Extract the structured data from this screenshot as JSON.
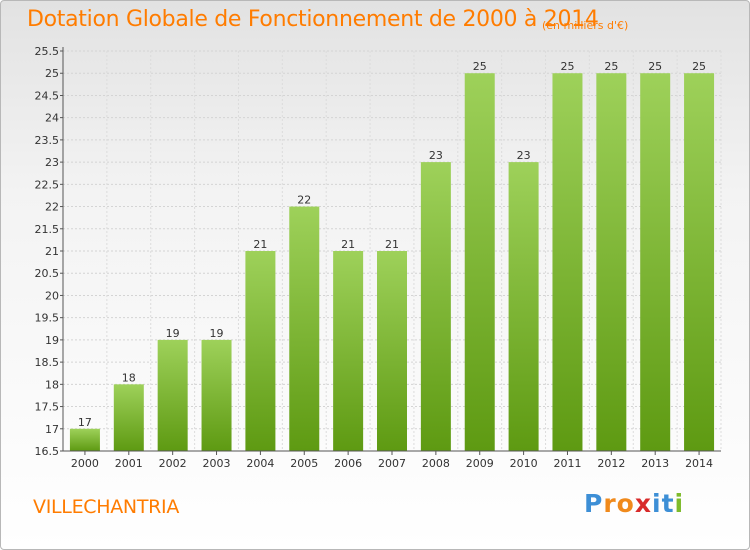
{
  "title": "Dotation Globale de Fonctionnement de 2000 à 2014",
  "subtitle": "(en milliers d'€)",
  "commune": "VILLECHANTRIA",
  "logo": {
    "letters": [
      "P",
      "r",
      "o",
      "x",
      "i",
      "t",
      "i"
    ],
    "colors": [
      "#3d8fd6",
      "#f08a1c",
      "#f08a1c",
      "#d82a2a",
      "#3d8fd6",
      "#3d8fd6",
      "#7dbb2b"
    ]
  },
  "colors": {
    "bar_top": "#9ed15a",
    "bar_bottom": "#5e9a12",
    "title": "#ff7c00"
  },
  "chart_data": {
    "type": "bar",
    "categories": [
      "2000",
      "2001",
      "2002",
      "2003",
      "2004",
      "2005",
      "2006",
      "2007",
      "2008",
      "2009",
      "2010",
      "2011",
      "2012",
      "2013",
      "2014"
    ],
    "values": [
      17,
      18,
      19,
      19,
      21,
      22,
      21,
      21,
      23,
      25,
      23,
      25,
      25,
      25,
      25
    ],
    "data_labels": [
      "17",
      "18",
      "19",
      "19",
      "21",
      "22",
      "21",
      "21",
      "23",
      "25",
      "23",
      "25",
      "25",
      "25",
      "25"
    ],
    "title": "Dotation Globale de Fonctionnement de 2000 à 2014",
    "ylim": [
      16.5,
      25.5
    ],
    "yticks": [
      "16.5",
      "17",
      "17.5",
      "18",
      "18.5",
      "19",
      "19.5",
      "20",
      "20.5",
      "21",
      "21.5",
      "22",
      "22.5",
      "23",
      "23.5",
      "24",
      "24.5",
      "25",
      "25.5"
    ],
    "grid": true
  }
}
